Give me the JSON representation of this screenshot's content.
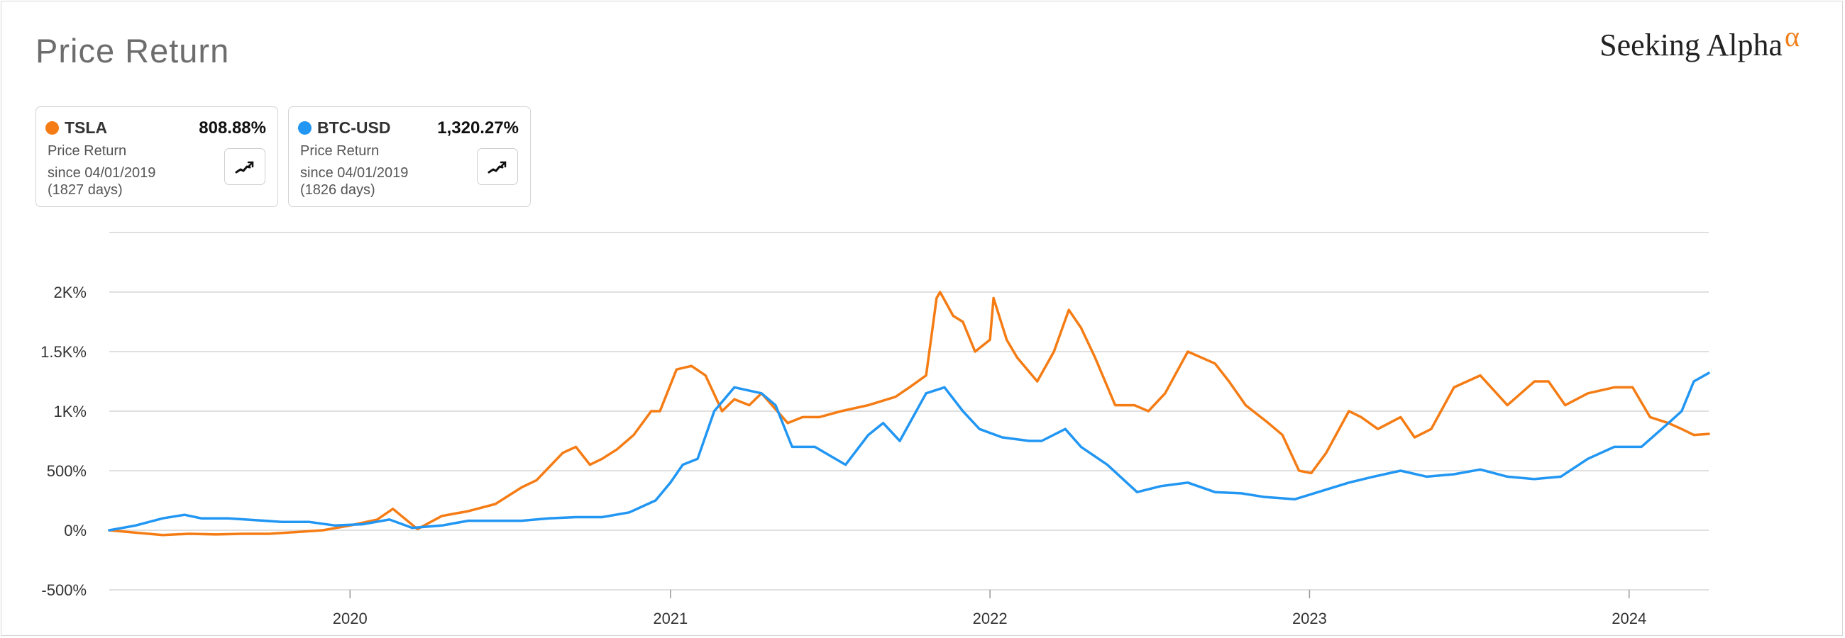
{
  "title": "Price Return",
  "brand": {
    "name": "Seeking Alpha",
    "symbol": "α"
  },
  "cards": [
    {
      "ticker": "TSLA",
      "value": "808.88%",
      "label": "Price Return",
      "since": "since 04/01/2019",
      "days": "(1827 days)",
      "color": "#f57c14",
      "icon": "chart-trend-icon"
    },
    {
      "ticker": "BTC-USD",
      "value": "1,320.27%",
      "label": "Price Return",
      "since": "since 04/01/2019",
      "days": "(1826 days)",
      "color": "#2196f3",
      "icon": "chart-trend-icon"
    }
  ],
  "chart_data": {
    "type": "line",
    "xlabel": "",
    "ylabel": "",
    "x_range": [
      "2019-04-01",
      "2024-04-01"
    ],
    "ylim": [
      -500,
      2500
    ],
    "y_ticks": [
      -500,
      0,
      500,
      1000,
      1500,
      2000
    ],
    "y_tick_labels": [
      "-500%",
      "0%",
      "500%",
      "1K%",
      "1.5K%",
      "2K%"
    ],
    "x_ticks": [
      "2020-01-01",
      "2021-01-01",
      "2022-01-01",
      "2023-01-01",
      "2024-01-01"
    ],
    "x_tick_labels": [
      "2020",
      "2021",
      "2022",
      "2023",
      "2024"
    ],
    "grid": true,
    "series": [
      {
        "name": "TSLA",
        "color": "#f57c14",
        "points": [
          [
            "2019-04-01",
            0
          ],
          [
            "2019-05-01",
            -20
          ],
          [
            "2019-06-01",
            -40
          ],
          [
            "2019-07-01",
            -30
          ],
          [
            "2019-08-01",
            -35
          ],
          [
            "2019-09-01",
            -30
          ],
          [
            "2019-10-01",
            -30
          ],
          [
            "2019-11-01",
            -15
          ],
          [
            "2019-12-01",
            0
          ],
          [
            "2020-01-01",
            40
          ],
          [
            "2020-02-01",
            90
          ],
          [
            "2020-02-19",
            180
          ],
          [
            "2020-03-18",
            10
          ],
          [
            "2020-04-15",
            120
          ],
          [
            "2020-05-15",
            160
          ],
          [
            "2020-06-15",
            220
          ],
          [
            "2020-07-15",
            360
          ],
          [
            "2020-08-01",
            420
          ],
          [
            "2020-08-31",
            650
          ],
          [
            "2020-09-15",
            700
          ],
          [
            "2020-10-01",
            550
          ],
          [
            "2020-10-15",
            600
          ],
          [
            "2020-11-01",
            680
          ],
          [
            "2020-11-20",
            800
          ],
          [
            "2020-12-10",
            1000
          ],
          [
            "2020-12-20",
            1000
          ],
          [
            "2021-01-08",
            1350
          ],
          [
            "2021-01-25",
            1380
          ],
          [
            "2021-02-10",
            1300
          ],
          [
            "2021-03-01",
            1000
          ],
          [
            "2021-03-15",
            1100
          ],
          [
            "2021-04-01",
            1050
          ],
          [
            "2021-04-15",
            1150
          ],
          [
            "2021-05-15",
            900
          ],
          [
            "2021-06-01",
            950
          ],
          [
            "2021-06-20",
            950
          ],
          [
            "2021-07-15",
            1000
          ],
          [
            "2021-08-15",
            1050
          ],
          [
            "2021-09-15",
            1120
          ],
          [
            "2021-10-01",
            1200
          ],
          [
            "2021-10-20",
            1300
          ],
          [
            "2021-11-01",
            1950
          ],
          [
            "2021-11-05",
            2000
          ],
          [
            "2021-11-20",
            1800
          ],
          [
            "2021-12-01",
            1750
          ],
          [
            "2021-12-15",
            1500
          ],
          [
            "2022-01-01",
            1600
          ],
          [
            "2022-01-05",
            1950
          ],
          [
            "2022-01-20",
            1600
          ],
          [
            "2022-02-01",
            1450
          ],
          [
            "2022-02-24",
            1250
          ],
          [
            "2022-03-15",
            1500
          ],
          [
            "2022-04-01",
            1850
          ],
          [
            "2022-04-15",
            1700
          ],
          [
            "2022-05-01",
            1450
          ],
          [
            "2022-05-24",
            1050
          ],
          [
            "2022-06-15",
            1050
          ],
          [
            "2022-07-01",
            1000
          ],
          [
            "2022-07-20",
            1150
          ],
          [
            "2022-08-15",
            1500
          ],
          [
            "2022-09-15",
            1400
          ],
          [
            "2022-10-01",
            1250
          ],
          [
            "2022-10-20",
            1050
          ],
          [
            "2022-11-15",
            900
          ],
          [
            "2022-12-01",
            800
          ],
          [
            "2022-12-20",
            500
          ],
          [
            "2023-01-03",
            480
          ],
          [
            "2023-01-20",
            650
          ],
          [
            "2023-02-15",
            1000
          ],
          [
            "2023-03-01",
            950
          ],
          [
            "2023-03-20",
            850
          ],
          [
            "2023-04-15",
            950
          ],
          [
            "2023-05-01",
            780
          ],
          [
            "2023-05-20",
            850
          ],
          [
            "2023-06-15",
            1200
          ],
          [
            "2023-07-15",
            1300
          ],
          [
            "2023-08-15",
            1050
          ],
          [
            "2023-09-15",
            1250
          ],
          [
            "2023-10-01",
            1250
          ],
          [
            "2023-10-20",
            1050
          ],
          [
            "2023-11-15",
            1150
          ],
          [
            "2023-12-15",
            1200
          ],
          [
            "2024-01-05",
            1200
          ],
          [
            "2024-01-25",
            950
          ],
          [
            "2024-02-15",
            900
          ],
          [
            "2024-03-01",
            850
          ],
          [
            "2024-03-15",
            800
          ],
          [
            "2024-04-01",
            808.88
          ]
        ]
      },
      {
        "name": "BTC-USD",
        "color": "#2196f3",
        "points": [
          [
            "2019-04-01",
            0
          ],
          [
            "2019-05-01",
            40
          ],
          [
            "2019-06-01",
            100
          ],
          [
            "2019-06-26",
            130
          ],
          [
            "2019-07-15",
            100
          ],
          [
            "2019-08-15",
            100
          ],
          [
            "2019-09-15",
            85
          ],
          [
            "2019-10-15",
            70
          ],
          [
            "2019-11-15",
            70
          ],
          [
            "2019-12-15",
            40
          ],
          [
            "2020-01-15",
            50
          ],
          [
            "2020-02-15",
            90
          ],
          [
            "2020-03-12",
            20
          ],
          [
            "2020-04-15",
            40
          ],
          [
            "2020-05-15",
            80
          ],
          [
            "2020-06-15",
            80
          ],
          [
            "2020-07-15",
            80
          ],
          [
            "2020-08-15",
            100
          ],
          [
            "2020-09-15",
            110
          ],
          [
            "2020-10-15",
            110
          ],
          [
            "2020-11-15",
            150
          ],
          [
            "2020-12-15",
            250
          ],
          [
            "2021-01-01",
            400
          ],
          [
            "2021-01-15",
            550
          ],
          [
            "2021-02-01",
            600
          ],
          [
            "2021-02-20",
            1000
          ],
          [
            "2021-03-15",
            1200
          ],
          [
            "2021-04-15",
            1150
          ],
          [
            "2021-05-01",
            1050
          ],
          [
            "2021-05-20",
            700
          ],
          [
            "2021-06-15",
            700
          ],
          [
            "2021-07-20",
            550
          ],
          [
            "2021-08-15",
            800
          ],
          [
            "2021-09-01",
            900
          ],
          [
            "2021-09-20",
            750
          ],
          [
            "2021-10-20",
            1150
          ],
          [
            "2021-11-10",
            1200
          ],
          [
            "2021-12-01",
            1000
          ],
          [
            "2021-12-20",
            850
          ],
          [
            "2022-01-15",
            780
          ],
          [
            "2022-02-15",
            750
          ],
          [
            "2022-03-01",
            750
          ],
          [
            "2022-03-28",
            850
          ],
          [
            "2022-04-15",
            700
          ],
          [
            "2022-05-15",
            550
          ],
          [
            "2022-06-18",
            320
          ],
          [
            "2022-07-15",
            370
          ],
          [
            "2022-08-15",
            400
          ],
          [
            "2022-09-15",
            320
          ],
          [
            "2022-10-15",
            310
          ],
          [
            "2022-11-10",
            280
          ],
          [
            "2022-12-15",
            260
          ],
          [
            "2023-01-15",
            330
          ],
          [
            "2023-02-15",
            400
          ],
          [
            "2023-03-15",
            450
          ],
          [
            "2023-04-15",
            500
          ],
          [
            "2023-05-15",
            450
          ],
          [
            "2023-06-15",
            470
          ],
          [
            "2023-07-15",
            510
          ],
          [
            "2023-08-15",
            450
          ],
          [
            "2023-09-15",
            430
          ],
          [
            "2023-10-15",
            450
          ],
          [
            "2023-11-15",
            600
          ],
          [
            "2023-12-15",
            700
          ],
          [
            "2024-01-15",
            700
          ],
          [
            "2024-02-15",
            900
          ],
          [
            "2024-03-01",
            1000
          ],
          [
            "2024-03-15",
            1250
          ],
          [
            "2024-04-01",
            1320.27
          ]
        ]
      }
    ]
  }
}
